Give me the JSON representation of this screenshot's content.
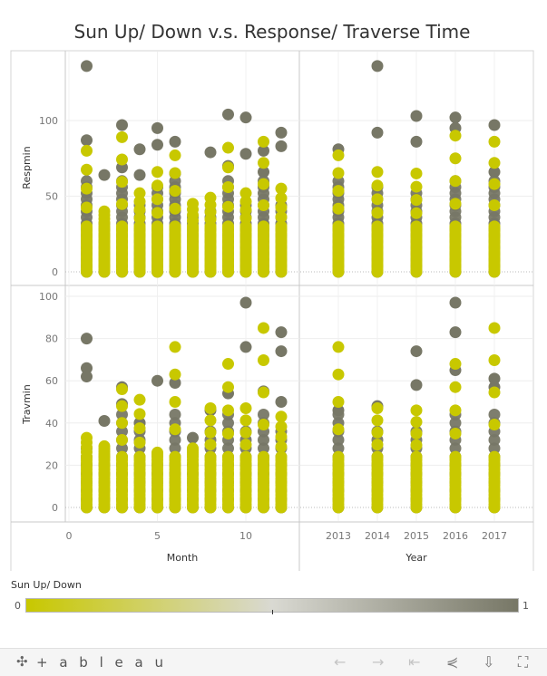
{
  "chart_data": {
    "type": "scatter",
    "title": "Sun Up/ Down v.s. Response/ Traverse Time",
    "color_field": "Sun Up/ Down",
    "color_range": [
      0,
      1
    ],
    "colors": {
      "low": "#c8c800",
      "mid": "#d9d9d2",
      "high": "#777766"
    },
    "columns": [
      {
        "xlabel": "Month",
        "xticks": [
          0,
          5,
          10
        ],
        "xlim": [
          0,
          12.5
        ]
      },
      {
        "xlabel": "Year",
        "xticks": [
          "2013",
          "2014",
          "2015",
          "2016",
          "2017"
        ]
      }
    ],
    "rows": [
      {
        "ylabel": "Respmin",
        "yticks": [
          0,
          50,
          100
        ],
        "ylim": [
          -5,
          140
        ]
      },
      {
        "ylabel": "Travmin",
        "yticks": [
          0,
          20,
          40,
          60,
          80,
          100
        ],
        "ylim": [
          -3,
          103
        ]
      }
    ],
    "series": [
      {
        "panel": "month-respmin",
        "x": [
          1,
          2,
          3,
          4,
          5,
          6,
          7,
          8,
          9,
          10,
          11,
          12
        ],
        "max_yellow": [
          80,
          40,
          89,
          52,
          66,
          77,
          45,
          49,
          82,
          52,
          86,
          55
        ],
        "outliers_gray": [
          [
            1,
            136
          ],
          [
            1,
            87
          ],
          [
            2,
            64
          ],
          [
            3,
            97
          ],
          [
            3,
            69
          ],
          [
            4,
            81
          ],
          [
            4,
            64
          ],
          [
            5,
            95
          ],
          [
            5,
            84
          ],
          [
            6,
            86
          ],
          [
            6,
            65
          ],
          [
            8,
            79
          ],
          [
            9,
            104
          ],
          [
            9,
            70
          ],
          [
            10,
            102
          ],
          [
            10,
            78
          ],
          [
            11,
            80
          ],
          [
            11,
            66
          ],
          [
            12,
            92
          ],
          [
            12,
            83
          ]
        ]
      },
      {
        "panel": "year-respmin",
        "x": [
          "2013",
          "2014",
          "2015",
          "2016",
          "2017"
        ],
        "max_yellow": [
          77,
          66,
          65,
          90,
          86
        ],
        "outliers_gray": [
          [
            2013,
            81
          ],
          [
            2014,
            136
          ],
          [
            2014,
            92
          ],
          [
            2015,
            103
          ],
          [
            2015,
            86
          ],
          [
            2016,
            102
          ],
          [
            2016,
            95
          ],
          [
            2017,
            97
          ],
          [
            2017,
            66
          ]
        ]
      },
      {
        "panel": "month-travmin",
        "x": [
          1,
          2,
          3,
          4,
          5,
          6,
          7,
          8,
          9,
          10,
          11,
          12
        ],
        "max_yellow": [
          33,
          29,
          56,
          51,
          26,
          76,
          28,
          47,
          68,
          47,
          85,
          43
        ],
        "outliers_gray": [
          [
            1,
            80
          ],
          [
            1,
            66
          ],
          [
            1,
            62
          ],
          [
            2,
            41
          ],
          [
            3,
            57
          ],
          [
            3,
            49
          ],
          [
            4,
            40
          ],
          [
            5,
            60
          ],
          [
            6,
            59
          ],
          [
            7,
            33
          ],
          [
            8,
            46
          ],
          [
            9,
            54
          ],
          [
            10,
            97
          ],
          [
            10,
            76
          ],
          [
            11,
            55
          ],
          [
            12,
            83
          ],
          [
            12,
            74
          ],
          [
            12,
            50
          ]
        ]
      },
      {
        "panel": "year-travmin",
        "x": [
          "2013",
          "2014",
          "2015",
          "2016",
          "2017"
        ],
        "max_yellow": [
          76,
          47,
          46,
          68,
          85
        ],
        "outliers_gray": [
          [
            2013,
            46
          ],
          [
            2014,
            48
          ],
          [
            2015,
            74
          ],
          [
            2015,
            58
          ],
          [
            2016,
            97
          ],
          [
            2016,
            83
          ],
          [
            2016,
            65
          ],
          [
            2017,
            61
          ],
          [
            2017,
            57
          ]
        ]
      }
    ]
  },
  "legend": {
    "title": "Sun Up/ Down",
    "min_label": "0",
    "max_label": "1"
  },
  "footer": {
    "brand": "+ a b l e a u"
  },
  "icons": [
    "tableau-logo-icon",
    "undo-icon",
    "redo-icon",
    "revert-icon",
    "share-icon",
    "download-icon",
    "fullscreen-icon"
  ]
}
